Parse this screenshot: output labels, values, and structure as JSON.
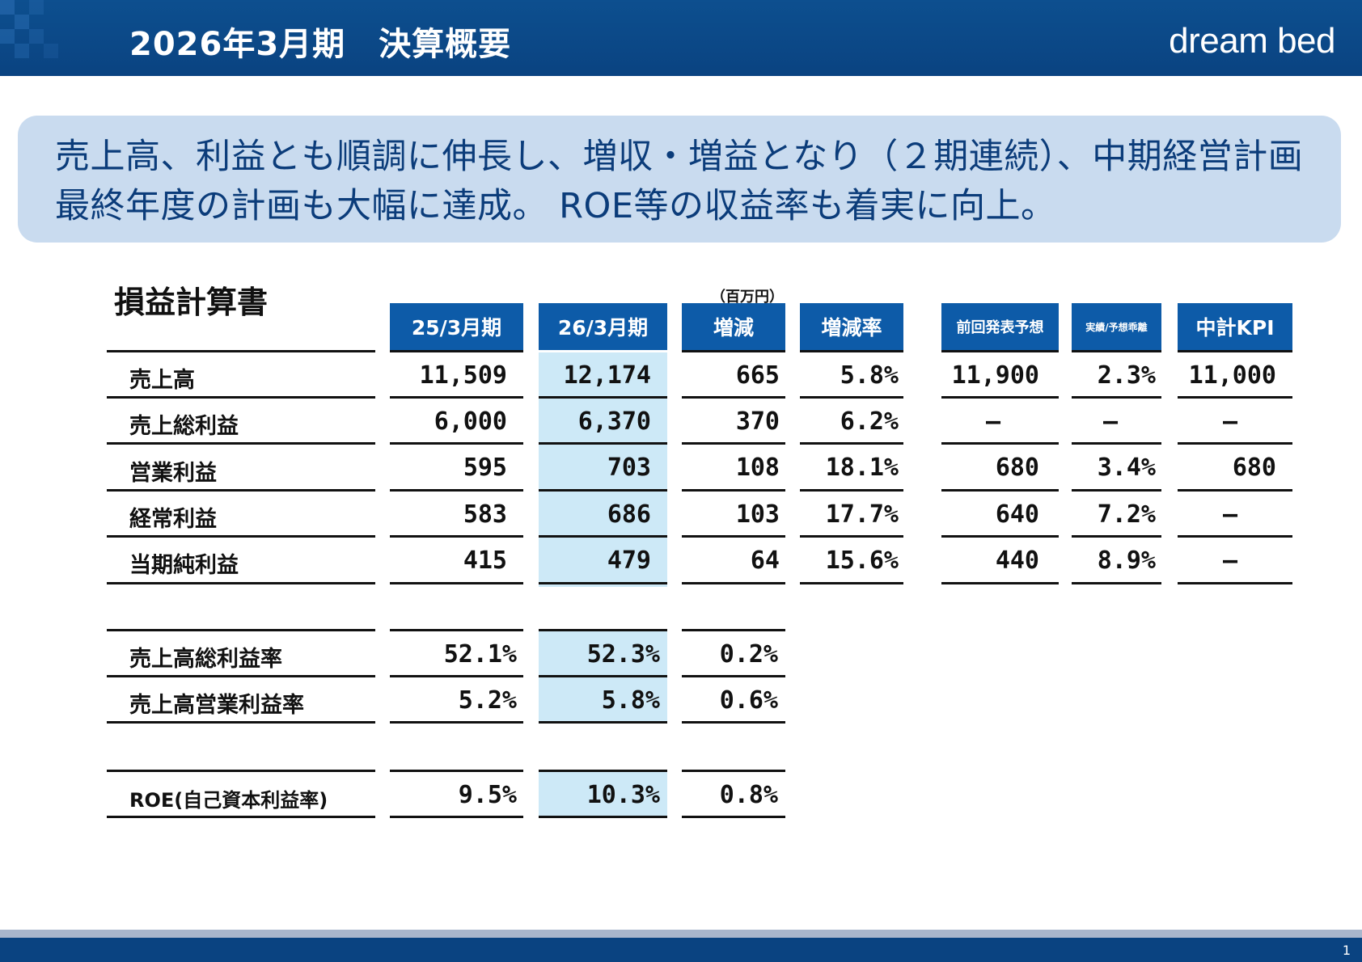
{
  "header": {
    "title": "2026年3月期　決算概要",
    "logo": "dream bed"
  },
  "banner": {
    "line1": "売上高、利益とも順調に伸長し、増収・増益となり（２期連続）、中期経営計画",
    "line2": "最終年度の計画も大幅に達成。 ROE等の収益率も着実に向上。"
  },
  "section": {
    "title": "損益計算書",
    "unit": "（百万円）"
  },
  "columns": {
    "prev": "25/3月期",
    "curr": "26/3月期",
    "diff": "増減",
    "rate": "増減率",
    "forecast": "前回発表予想",
    "variance": "実績/予想乖離",
    "kpi": "中計KPI"
  },
  "rows": [
    {
      "label": "売上高",
      "prev": "11,509",
      "curr": "12,174",
      "diff": "665",
      "rate": "5.8%",
      "forecast": "11,900",
      "variance": "2.3%",
      "kpi": "11,000"
    },
    {
      "label": "売上総利益",
      "prev": "6,000",
      "curr": "6,370",
      "diff": "370",
      "rate": "6.2%",
      "forecast": "―",
      "variance": "―",
      "kpi": "―"
    },
    {
      "label": "営業利益",
      "prev": "595",
      "curr": "703",
      "diff": "108",
      "rate": "18.1%",
      "forecast": "680",
      "variance": "3.4%",
      "kpi": "680"
    },
    {
      "label": "経常利益",
      "prev": "583",
      "curr": "686",
      "diff": "103",
      "rate": "17.7%",
      "forecast": "640",
      "variance": "7.2%",
      "kpi": "―"
    },
    {
      "label": "当期純利益",
      "prev": "415",
      "curr": "479",
      "diff": "64",
      "rate": "15.6%",
      "forecast": "440",
      "variance": "8.9%",
      "kpi": "―"
    }
  ],
  "ratios": [
    {
      "label": "売上高総利益率",
      "prev": "52.1%",
      "curr": "52.3%",
      "diff": "0.2%"
    },
    {
      "label": "売上高営業利益率",
      "prev": "5.2%",
      "curr": "5.8%",
      "diff": "0.6%"
    }
  ],
  "roe": {
    "label": "ROE(自己資本利益率)",
    "prev": "9.5%",
    "curr": "10.3%",
    "diff": "0.8%"
  },
  "page_number": "1"
}
